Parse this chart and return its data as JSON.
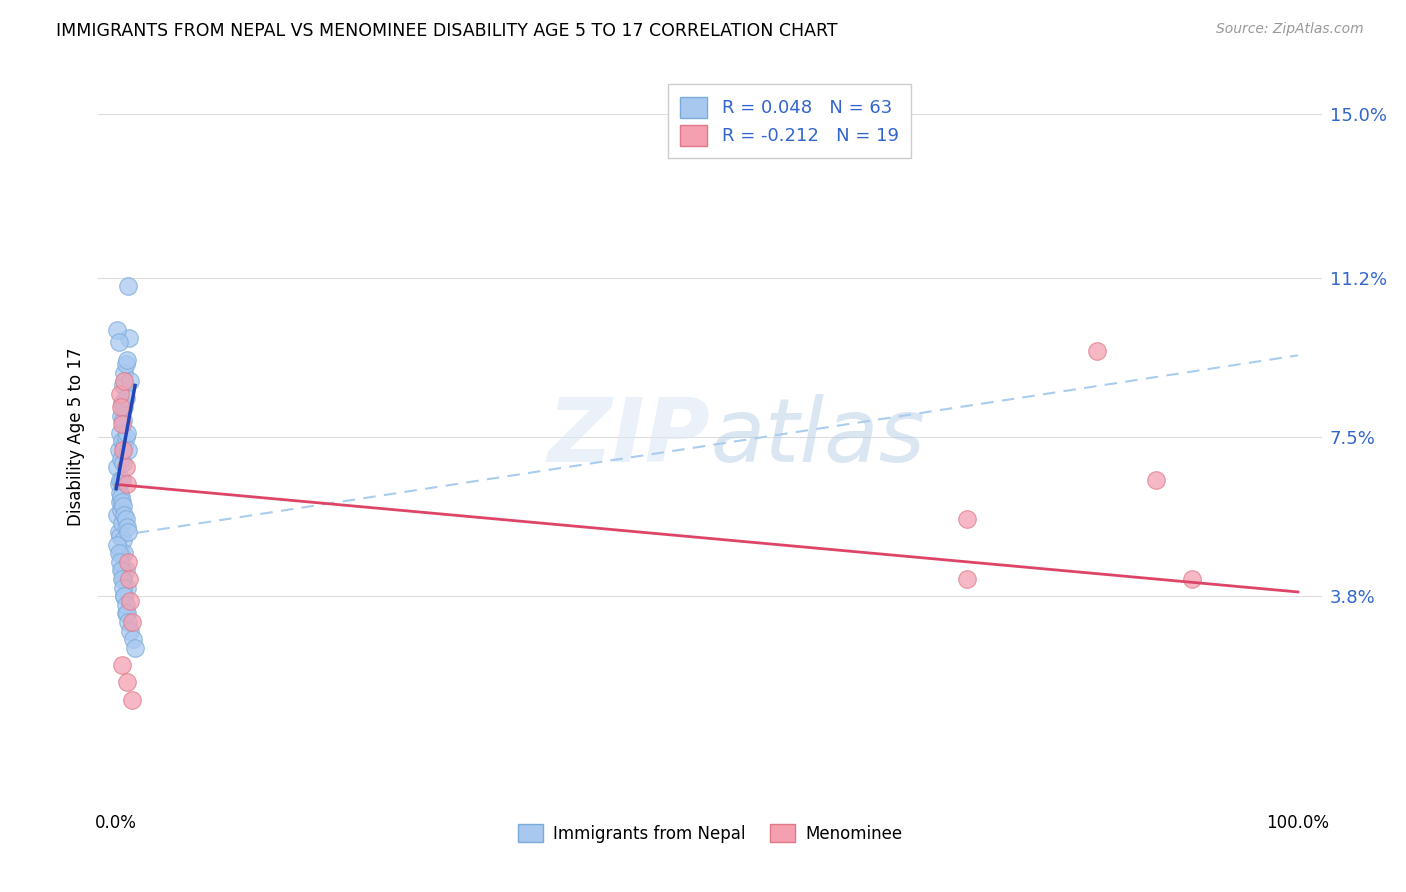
{
  "title": "IMMIGRANTS FROM NEPAL VS MENOMINEE DISABILITY AGE 5 TO 17 CORRELATION CHART",
  "source": "Source: ZipAtlas.com",
  "ylabel": "Disability Age 5 to 17",
  "xlim": [
    -0.015,
    1.02
  ],
  "ylim": [
    -0.01,
    0.16
  ],
  "xticklabels": [
    "0.0%",
    "100.0%"
  ],
  "ytick_positions": [
    0.038,
    0.075,
    0.112,
    0.15
  ],
  "ytick_labels": [
    "3.8%",
    "7.5%",
    "11.2%",
    "15.0%"
  ],
  "nepal_R": 0.048,
  "nepal_N": 63,
  "menominee_R": -0.212,
  "menominee_N": 19,
  "nepal_color": "#a8c8f0",
  "nepal_edge_color": "#7aaad8",
  "menominee_color": "#f4a0b0",
  "menominee_edge_color": "#e07888",
  "nepal_line_color": "#2244bb",
  "menominee_line_color": "#dd4466",
  "dashed_line_color": "#aaccee",
  "watermark": "ZIPatlas",
  "nepal_x": [
    0.001,
    0.002,
    0.002,
    0.003,
    0.003,
    0.004,
    0.004,
    0.005,
    0.005,
    0.005,
    0.006,
    0.006,
    0.006,
    0.007,
    0.007,
    0.007,
    0.008,
    0.008,
    0.008,
    0.009,
    0.009,
    0.01,
    0.01,
    0.011,
    0.012,
    0.001,
    0.002,
    0.003,
    0.003,
    0.004,
    0.004,
    0.005,
    0.005,
    0.006,
    0.006,
    0.007,
    0.007,
    0.008,
    0.008,
    0.009,
    0.001,
    0.002,
    0.003,
    0.004,
    0.005,
    0.006,
    0.007,
    0.008,
    0.009,
    0.01,
    0.001,
    0.002,
    0.003,
    0.004,
    0.005,
    0.006,
    0.007,
    0.008,
    0.009,
    0.01,
    0.012,
    0.014,
    0.016
  ],
  "nepal_y": [
    0.068,
    0.072,
    0.064,
    0.076,
    0.065,
    0.08,
    0.07,
    0.083,
    0.074,
    0.065,
    0.087,
    0.079,
    0.069,
    0.09,
    0.082,
    0.073,
    0.092,
    0.084,
    0.075,
    0.093,
    0.076,
    0.11,
    0.072,
    0.098,
    0.088,
    0.057,
    0.053,
    0.06,
    0.052,
    0.058,
    0.048,
    0.055,
    0.044,
    0.051,
    0.042,
    0.048,
    0.038,
    0.044,
    0.034,
    0.04,
    0.1,
    0.097,
    0.062,
    0.061,
    0.06,
    0.059,
    0.057,
    0.056,
    0.054,
    0.053,
    0.05,
    0.048,
    0.046,
    0.044,
    0.042,
    0.04,
    0.038,
    0.036,
    0.034,
    0.032,
    0.03,
    0.028,
    0.026
  ],
  "menominee_x": [
    0.003,
    0.004,
    0.005,
    0.006,
    0.007,
    0.008,
    0.009,
    0.01,
    0.011,
    0.012,
    0.013,
    0.72,
    0.83,
    0.88,
    0.91,
    0.005,
    0.009,
    0.013,
    0.72
  ],
  "menominee_y": [
    0.085,
    0.082,
    0.078,
    0.072,
    0.088,
    0.068,
    0.064,
    0.046,
    0.042,
    0.037,
    0.032,
    0.056,
    0.095,
    0.065,
    0.042,
    0.022,
    0.018,
    0.014,
    0.042
  ],
  "nepal_trend": [
    0.063,
    0.087
  ],
  "menominee_trend": [
    0.064,
    0.039
  ],
  "dashed_trend": [
    0.052,
    0.094
  ],
  "background_color": "#ffffff",
  "grid_color": "#dddddd",
  "legend_label_nepal": "Immigrants from Nepal",
  "legend_label_menominee": "Menominee"
}
